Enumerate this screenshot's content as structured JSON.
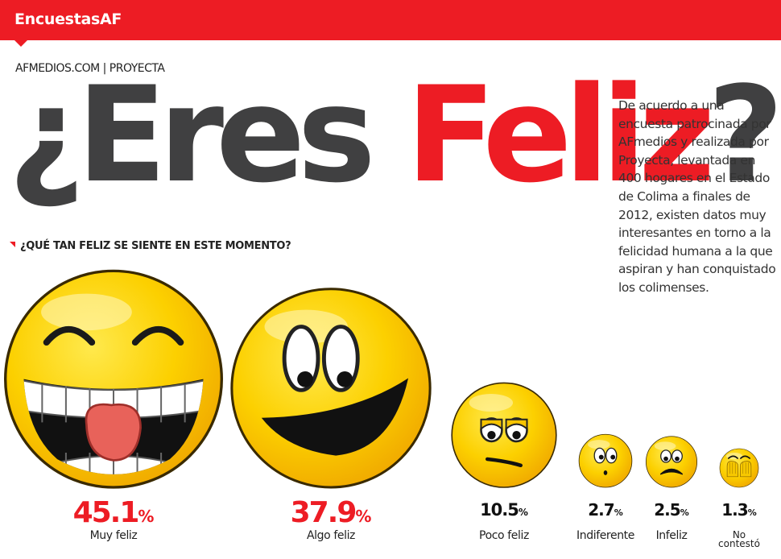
{
  "header": {
    "brand": "EncuestasAF"
  },
  "source": "AFMEDIOS.COM | PROYECTA",
  "headline": {
    "part1": "¿Eres ",
    "part2": "Feliz",
    "part3": "?"
  },
  "intro": "De acuerdo a una encuesta patrocinada por AFmedios y realizada por Proyecta, levantada en 400 hogares en el Estado de Colima a finales de 2012, existen datos muy interesantes en torno a la felicidad humana a la que aspiran y han conquistado los colimenses.",
  "colors": {
    "accent": "#ed1c24",
    "dark": "#404041",
    "smiley": "#fcd000",
    "smiley_edge": "#e9a800"
  },
  "chart_data": {
    "type": "bar",
    "title": "¿QUÉ TAN FELIZ SE SIENTE EN ESTE MOMENTO?",
    "unit": "%",
    "categories": [
      "Muy feliz",
      "Algo feliz",
      "Poco feliz",
      "Indiferente",
      "Infeliz",
      "No contestó"
    ],
    "values": [
      45.1,
      37.9,
      10.5,
      2.7,
      2.5,
      1.3
    ],
    "value_labels": [
      "45.1",
      "37.9",
      "10.5",
      "2.7",
      "2.5",
      "1.3"
    ],
    "faces": [
      "laughing",
      "smiling",
      "sad",
      "indifferent",
      "unhappy",
      "hiding"
    ]
  }
}
